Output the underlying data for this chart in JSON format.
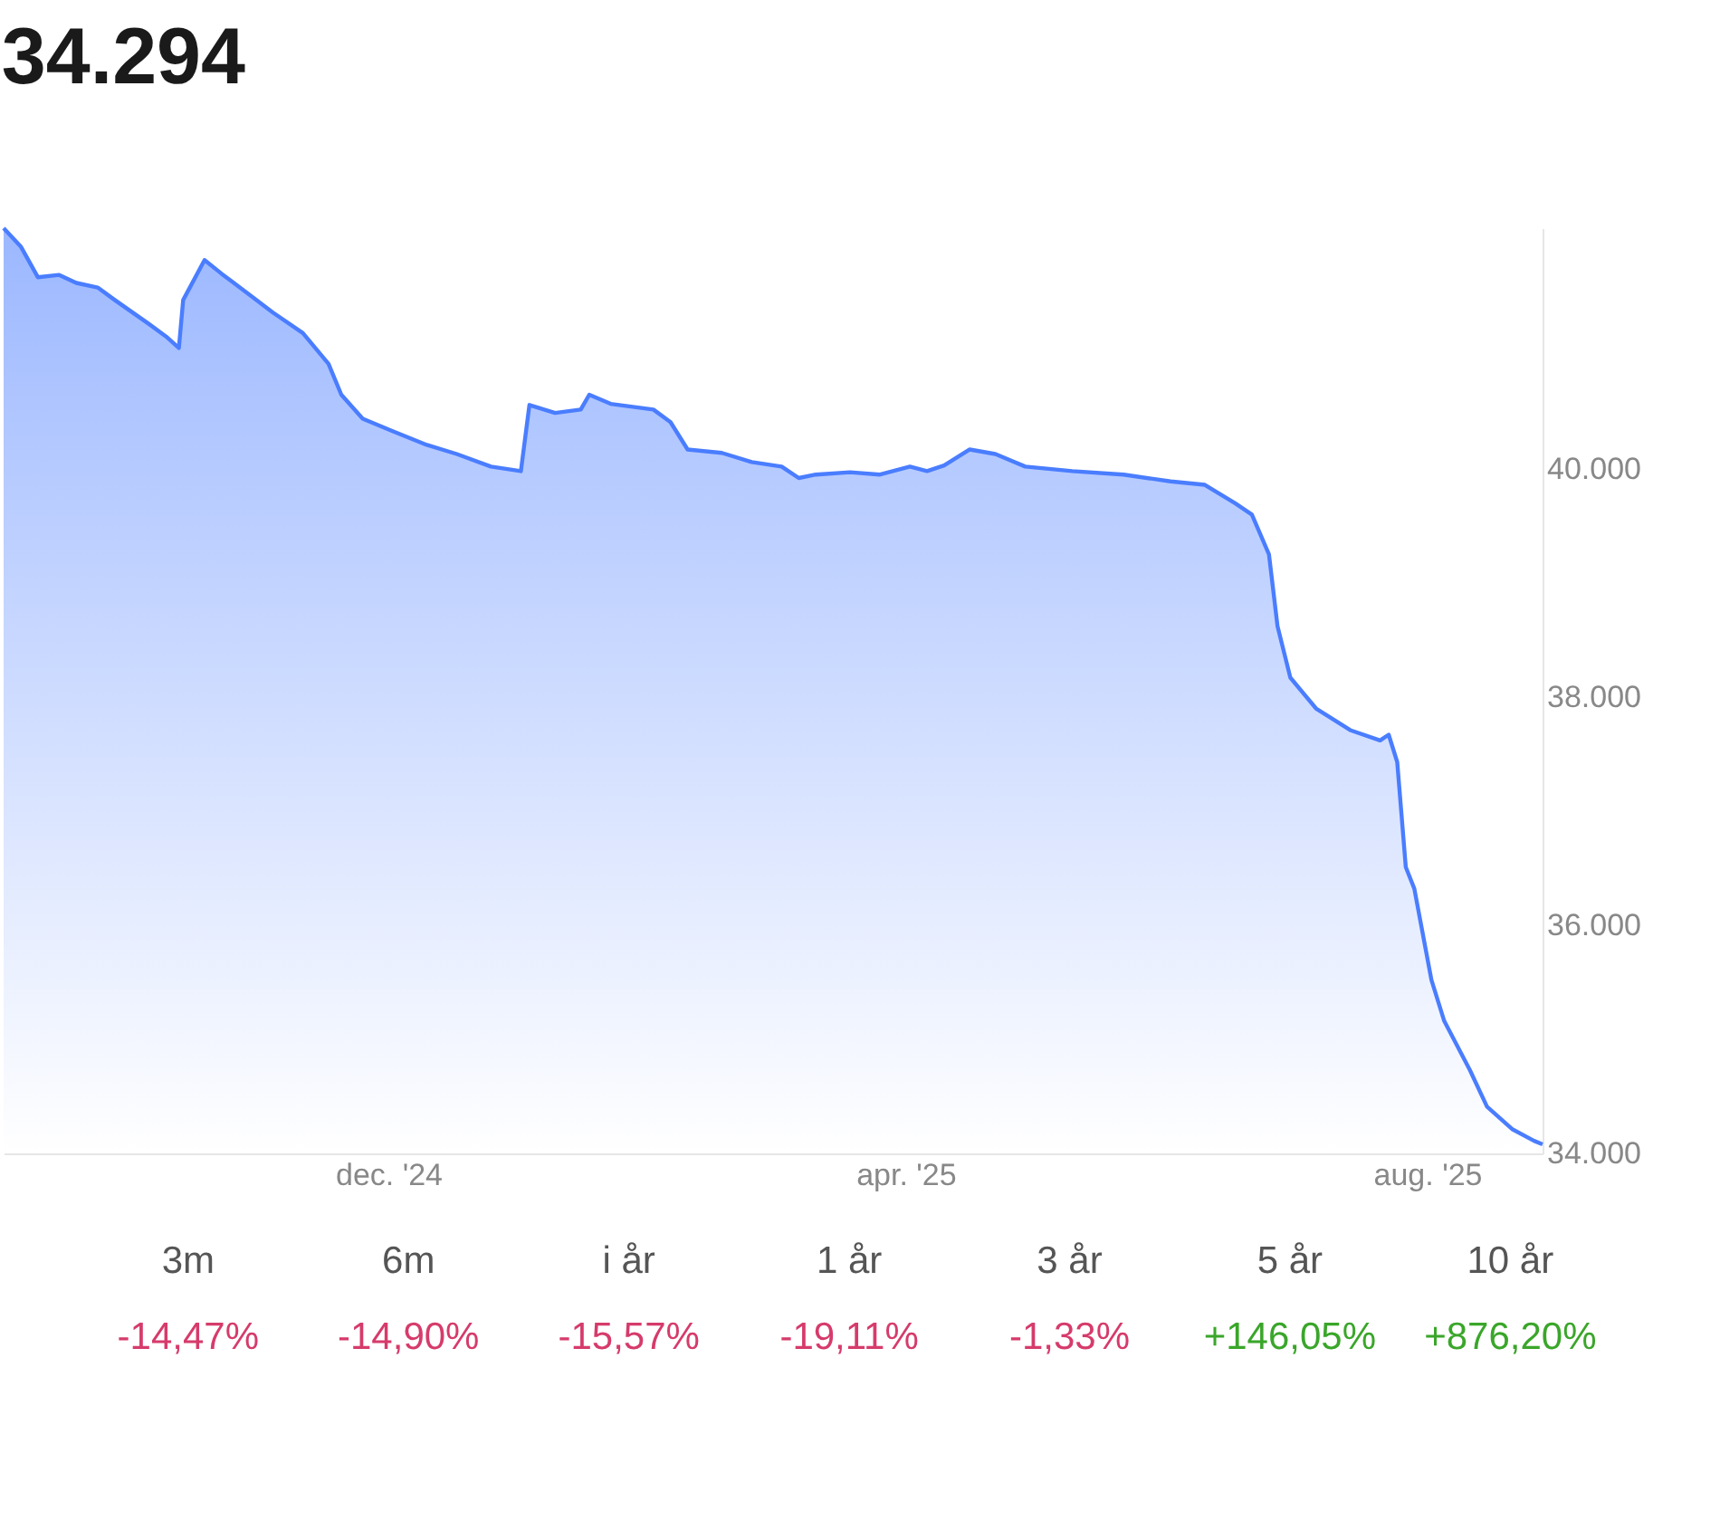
{
  "chart_data": {
    "type": "area",
    "title": "34.294",
    "x": [
      "2024-09-02",
      "2024-09-06",
      "2024-09-10",
      "2024-09-15",
      "2024-09-19",
      "2024-09-24",
      "2024-09-28",
      "2024-10-06",
      "2024-10-10",
      "2024-10-13",
      "2024-10-14",
      "2024-10-19",
      "2024-10-23",
      "2024-10-29",
      "2024-11-04",
      "2024-11-11",
      "2024-11-17",
      "2024-11-20",
      "2024-11-25",
      "2024-12-02",
      "2024-12-10",
      "2024-12-17",
      "2024-12-25",
      "2025-01-01",
      "2025-01-03",
      "2025-01-09",
      "2025-01-15",
      "2025-01-17",
      "2025-01-22",
      "2025-02-01",
      "2025-02-05",
      "2025-02-09",
      "2025-02-17",
      "2025-02-24",
      "2025-03-03",
      "2025-03-07",
      "2025-03-11",
      "2025-03-19",
      "2025-03-26",
      "2025-04-02",
      "2025-04-06",
      "2025-04-10",
      "2025-04-16",
      "2025-04-22",
      "2025-04-29",
      "2025-05-10",
      "2025-05-22",
      "2025-06-02",
      "2025-06-10",
      "2025-06-17",
      "2025-06-21",
      "2025-06-25",
      "2025-06-27",
      "2025-06-30",
      "2025-07-06",
      "2025-07-14",
      "2025-07-21",
      "2025-07-23",
      "2025-07-25",
      "2025-07-27",
      "2025-07-29",
      "2025-08-02",
      "2025-08-05",
      "2025-08-11",
      "2025-08-15",
      "2025-08-21",
      "2025-08-26",
      "2025-08-28"
    ],
    "series": [
      {
        "color": "#4a7dff",
        "values": [
          42110,
          41950,
          41680,
          41700,
          41630,
          41590,
          41480,
          41270,
          41160,
          41060,
          41480,
          41830,
          41710,
          41540,
          41370,
          41190,
          40920,
          40650,
          40440,
          40330,
          40210,
          40130,
          40020,
          39980,
          40560,
          40490,
          40520,
          40650,
          40570,
          40520,
          40410,
          40170,
          40140,
          40060,
          40020,
          39920,
          39950,
          39970,
          39950,
          40020,
          39980,
          40030,
          40170,
          40130,
          40020,
          39980,
          39950,
          39890,
          39860,
          39700,
          39600,
          39250,
          38620,
          38170,
          37900,
          37710,
          37620,
          37670,
          37430,
          36510,
          36320,
          35520,
          35160,
          34730,
          34410,
          34210,
          34110,
          34080
        ]
      }
    ],
    "xticks": [
      {
        "value": "2024-12-01",
        "label": "dec. '24"
      },
      {
        "value": "2025-04-01",
        "label": "apr. '25"
      },
      {
        "value": "2025-08-01",
        "label": "aug. '25"
      }
    ],
    "yticks": [
      {
        "value": 34000,
        "label": "34.000"
      },
      {
        "value": 36000,
        "label": "36.000"
      },
      {
        "value": 38000,
        "label": "38.000"
      },
      {
        "value": 40000,
        "label": "40.000"
      }
    ],
    "xlim": [
      "2024-09-02",
      "2025-08-28"
    ],
    "ylim": [
      34000,
      42110
    ],
    "grid": false,
    "annotations": [
      "3m",
      "-14,47%",
      "6m",
      "-14,90%",
      "i år",
      "-15,57%",
      "1 år",
      "-19,11%",
      "3 år",
      "-1,33%",
      "5 år",
      "+146,05%",
      "10 år",
      "+876,20%"
    ]
  }
}
